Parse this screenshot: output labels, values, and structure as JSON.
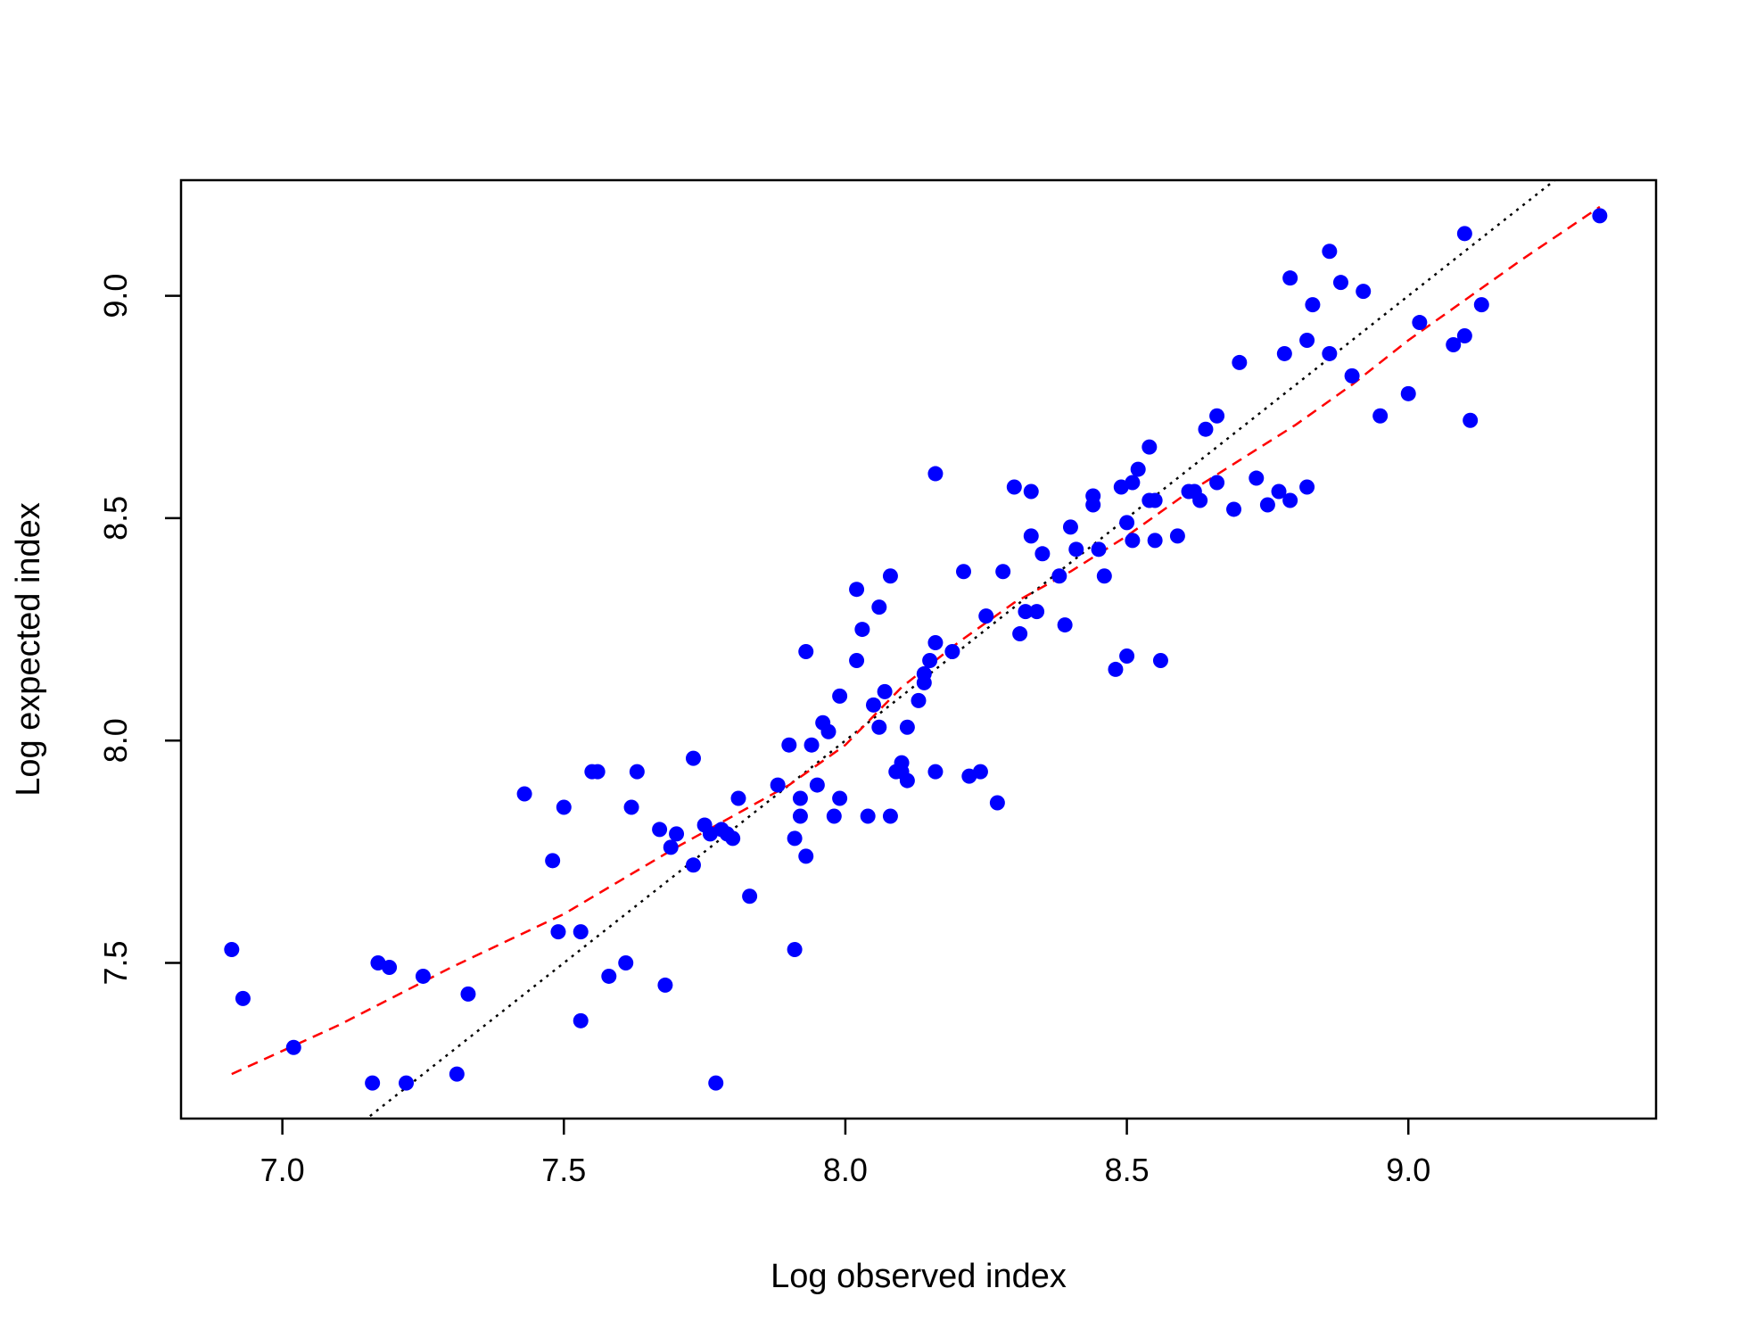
{
  "chart_data": {
    "type": "scatter",
    "title": "",
    "xlabel": "Log observed index",
    "ylabel": "Log expected index",
    "xlim": [
      6.82,
      9.44
    ],
    "ylim": [
      7.15,
      9.26
    ],
    "xticks": [
      7.0,
      7.5,
      8.0,
      8.5,
      9.0
    ],
    "yticks": [
      7.5,
      8.0,
      8.5,
      9.0
    ],
    "xtick_labels": [
      "7.0",
      "7.5",
      "8.0",
      "8.5",
      "9.0"
    ],
    "ytick_labels": [
      "7.5",
      "8.0",
      "8.5",
      "9.0"
    ],
    "grid": false,
    "point_color": "#0000ff",
    "reference_line": {
      "style": "dotted",
      "color": "#000000",
      "slope": 1,
      "intercept": 0
    },
    "smooth_line": {
      "style": "dashed",
      "color": "#ff0000",
      "x": [
        6.91,
        7.1,
        7.3,
        7.5,
        7.7,
        7.9,
        8.0,
        8.1,
        8.2,
        8.3,
        8.4,
        8.5,
        8.6,
        8.7,
        8.8,
        8.9,
        9.0,
        9.1,
        9.2,
        9.34
      ],
      "y": [
        7.25,
        7.36,
        7.49,
        7.61,
        7.76,
        7.9,
        7.99,
        8.12,
        8.22,
        8.31,
        8.38,
        8.46,
        8.55,
        8.63,
        8.71,
        8.8,
        8.9,
        8.99,
        9.08,
        9.2
      ]
    },
    "points": [
      [
        6.91,
        7.53
      ],
      [
        6.93,
        7.42
      ],
      [
        7.02,
        7.31
      ],
      [
        7.16,
        7.23
      ],
      [
        7.17,
        7.5
      ],
      [
        7.19,
        7.49
      ],
      [
        7.22,
        7.23
      ],
      [
        7.25,
        7.47
      ],
      [
        7.31,
        7.25
      ],
      [
        7.33,
        7.43
      ],
      [
        7.43,
        7.88
      ],
      [
        7.48,
        7.73
      ],
      [
        7.49,
        7.57
      ],
      [
        7.5,
        7.85
      ],
      [
        7.53,
        7.57
      ],
      [
        7.53,
        7.37
      ],
      [
        7.55,
        7.93
      ],
      [
        7.56,
        7.93
      ],
      [
        7.58,
        7.47
      ],
      [
        7.61,
        7.5
      ],
      [
        7.62,
        7.85
      ],
      [
        7.63,
        7.93
      ],
      [
        7.67,
        7.8
      ],
      [
        7.68,
        7.45
      ],
      [
        7.69,
        7.76
      ],
      [
        7.7,
        7.79
      ],
      [
        7.73,
        7.96
      ],
      [
        7.73,
        7.72
      ],
      [
        7.75,
        7.81
      ],
      [
        7.76,
        7.79
      ],
      [
        7.77,
        7.23
      ],
      [
        7.78,
        7.8
      ],
      [
        7.79,
        7.79
      ],
      [
        7.8,
        7.78
      ],
      [
        7.81,
        7.87
      ],
      [
        7.83,
        7.65
      ],
      [
        7.88,
        7.9
      ],
      [
        7.9,
        7.99
      ],
      [
        7.91,
        7.53
      ],
      [
        7.91,
        7.78
      ],
      [
        7.92,
        7.87
      ],
      [
        7.92,
        7.83
      ],
      [
        7.93,
        7.74
      ],
      [
        7.93,
        8.2
      ],
      [
        7.94,
        7.99
      ],
      [
        7.95,
        7.9
      ],
      [
        7.96,
        8.04
      ],
      [
        7.97,
        8.02
      ],
      [
        7.98,
        7.83
      ],
      [
        7.99,
        8.1
      ],
      [
        7.99,
        7.87
      ],
      [
        8.02,
        8.34
      ],
      [
        8.02,
        8.18
      ],
      [
        8.03,
        8.25
      ],
      [
        8.04,
        7.83
      ],
      [
        8.05,
        8.08
      ],
      [
        8.06,
        8.3
      ],
      [
        8.06,
        8.03
      ],
      [
        8.07,
        8.11
      ],
      [
        8.08,
        8.37
      ],
      [
        8.08,
        7.83
      ],
      [
        8.09,
        7.93
      ],
      [
        8.1,
        7.95
      ],
      [
        8.1,
        7.93
      ],
      [
        8.11,
        8.03
      ],
      [
        8.11,
        7.91
      ],
      [
        8.13,
        8.09
      ],
      [
        8.14,
        8.15
      ],
      [
        8.14,
        8.13
      ],
      [
        8.15,
        8.18
      ],
      [
        8.16,
        8.22
      ],
      [
        8.16,
        7.93
      ],
      [
        8.16,
        8.6
      ],
      [
        8.19,
        8.2
      ],
      [
        8.21,
        8.38
      ],
      [
        8.22,
        7.92
      ],
      [
        8.24,
        7.93
      ],
      [
        8.25,
        8.28
      ],
      [
        8.27,
        7.86
      ],
      [
        8.28,
        8.38
      ],
      [
        8.3,
        8.57
      ],
      [
        8.31,
        8.24
      ],
      [
        8.32,
        8.29
      ],
      [
        8.33,
        8.56
      ],
      [
        8.33,
        8.46
      ],
      [
        8.34,
        8.29
      ],
      [
        8.35,
        8.42
      ],
      [
        8.38,
        8.37
      ],
      [
        8.39,
        8.26
      ],
      [
        8.4,
        8.48
      ],
      [
        8.41,
        8.43
      ],
      [
        8.44,
        8.55
      ],
      [
        8.44,
        8.53
      ],
      [
        8.45,
        8.43
      ],
      [
        8.46,
        8.37
      ],
      [
        8.48,
        8.16
      ],
      [
        8.49,
        8.57
      ],
      [
        8.5,
        8.49
      ],
      [
        8.5,
        8.19
      ],
      [
        8.51,
        8.45
      ],
      [
        8.51,
        8.58
      ],
      [
        8.52,
        8.61
      ],
      [
        8.54,
        8.54
      ],
      [
        8.54,
        8.66
      ],
      [
        8.55,
        8.45
      ],
      [
        8.55,
        8.54
      ],
      [
        8.56,
        8.18
      ],
      [
        8.59,
        8.46
      ],
      [
        8.61,
        8.56
      ],
      [
        8.62,
        8.56
      ],
      [
        8.63,
        8.54
      ],
      [
        8.64,
        8.7
      ],
      [
        8.66,
        8.73
      ],
      [
        8.66,
        8.58
      ],
      [
        8.69,
        8.52
      ],
      [
        8.7,
        8.85
      ],
      [
        8.73,
        8.59
      ],
      [
        8.75,
        8.53
      ],
      [
        8.77,
        8.56
      ],
      [
        8.78,
        8.87
      ],
      [
        8.79,
        9.04
      ],
      [
        8.79,
        8.54
      ],
      [
        8.82,
        8.57
      ],
      [
        8.82,
        8.9
      ],
      [
        8.83,
        8.98
      ],
      [
        8.86,
        8.87
      ],
      [
        8.86,
        9.1
      ],
      [
        8.88,
        9.03
      ],
      [
        8.9,
        8.82
      ],
      [
        8.92,
        9.01
      ],
      [
        8.95,
        8.73
      ],
      [
        9.0,
        8.78
      ],
      [
        9.02,
        8.94
      ],
      [
        9.08,
        8.89
      ],
      [
        9.1,
        9.14
      ],
      [
        9.1,
        8.91
      ],
      [
        9.11,
        8.72
      ],
      [
        9.13,
        8.98
      ],
      [
        9.34,
        9.18
      ]
    ]
  }
}
